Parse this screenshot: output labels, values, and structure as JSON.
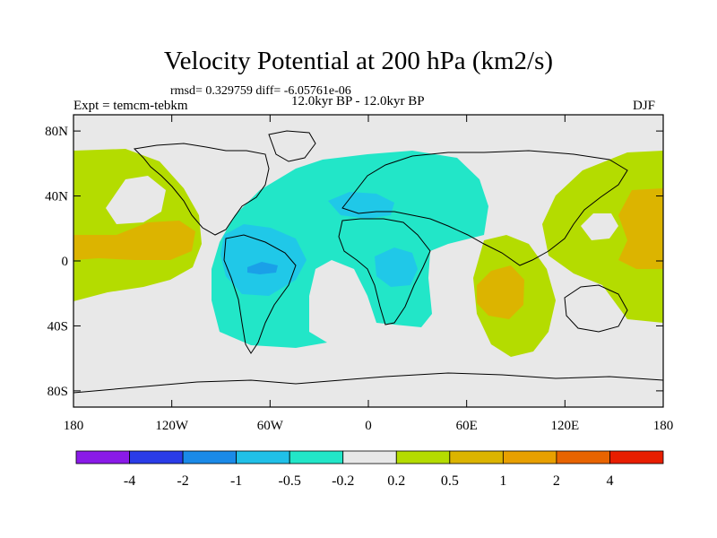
{
  "title": "Velocity Potential at 200 hPa (km2/s)",
  "stats": "rmsd= 0.329759  diff= -6.05761e-06",
  "experiment": "Expt = temcm-tebkm",
  "period": "12.0kyr BP - 12.0kyr BP",
  "season": "DJF",
  "axes": {
    "lat_ticks": [
      {
        "value": 80,
        "label": "80N"
      },
      {
        "value": 40,
        "label": "40N"
      },
      {
        "value": 0,
        "label": "0"
      },
      {
        "value": -40,
        "label": "40S"
      },
      {
        "value": -80,
        "label": "80S"
      }
    ],
    "lon_ticks": [
      {
        "value": -180,
        "label": "180"
      },
      {
        "value": -120,
        "label": "120W"
      },
      {
        "value": -60,
        "label": "60W"
      },
      {
        "value": 0,
        "label": "0"
      },
      {
        "value": 60,
        "label": "60E"
      },
      {
        "value": 120,
        "label": "120E"
      },
      {
        "value": 180,
        "label": "180"
      }
    ],
    "lon_range": [
      -180,
      180
    ],
    "lat_range": [
      -90,
      90
    ]
  },
  "colors": {
    "background_field": "#e8e8e8",
    "neg_small": "#22e6c8",
    "neg_medium": "#20c8e8",
    "neg_large": "#1aa0e8",
    "pos_small": "#b4dc00",
    "pos_medium": "#dcb400",
    "pos_large": "#e8840a",
    "coastline": "#000000"
  },
  "colorbar": {
    "colors": [
      "#8a1ae8",
      "#2a3ce8",
      "#1a8ae8",
      "#20c0e8",
      "#22e6c8",
      "#e8e8e8",
      "#b4dc00",
      "#dcb400",
      "#e8a000",
      "#e86400",
      "#e81e00"
    ],
    "labels": [
      "-4",
      "-2",
      "-1",
      "-0.5",
      "-0.2",
      "0.2",
      "0.5",
      "1",
      "2",
      "4"
    ]
  }
}
